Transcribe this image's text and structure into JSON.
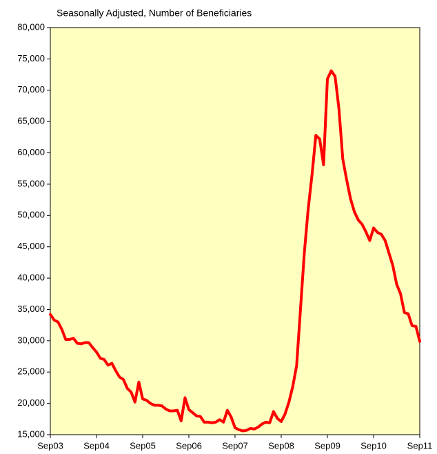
{
  "chart_data": {
    "type": "line",
    "title": "Seasonally Adjusted, Number of Beneficiaries",
    "categories": [
      "Sep03",
      null,
      null,
      null,
      null,
      null,
      null,
      null,
      null,
      null,
      null,
      null,
      "Sep04",
      null,
      null,
      null,
      null,
      null,
      null,
      null,
      null,
      null,
      null,
      null,
      "Sep05",
      null,
      null,
      null,
      null,
      null,
      null,
      null,
      null,
      null,
      null,
      null,
      "Sep06",
      null,
      null,
      null,
      null,
      null,
      null,
      null,
      null,
      null,
      null,
      null,
      "Sep07",
      null,
      null,
      null,
      null,
      null,
      null,
      null,
      null,
      null,
      null,
      null,
      "Sep08",
      null,
      null,
      null,
      null,
      null,
      null,
      null,
      null,
      null,
      null,
      null,
      "Sep09",
      null,
      null,
      null,
      null,
      null,
      null,
      null,
      null,
      null,
      null,
      null,
      "Sep10",
      null,
      null,
      null,
      null,
      null,
      null,
      null,
      null,
      null,
      null,
      null,
      "Sep11"
    ],
    "series": [
      {
        "color": "#ff0000",
        "values": [
          34200,
          33300,
          33000,
          31800,
          30200,
          30200,
          30400,
          29600,
          29500,
          29700,
          29700,
          28900,
          28200,
          27200,
          27000,
          26100,
          26400,
          25200,
          24200,
          23800,
          22400,
          21800,
          20200,
          23400,
          20700,
          20500,
          20000,
          19700,
          19700,
          19600,
          19100,
          18800,
          18800,
          18900,
          17200,
          20900,
          19000,
          18500,
          18000,
          17900,
          17000,
          17000,
          16900,
          17000,
          17400,
          17000,
          18900,
          17800,
          16100,
          15800,
          15600,
          15700,
          16000,
          15900,
          16200,
          16700,
          17000,
          16900,
          18700,
          17600,
          17100,
          18300,
          20200,
          22700,
          26000,
          35000,
          44000,
          51000,
          56500,
          62800,
          62200,
          58100,
          71800,
          73100,
          72200,
          67000,
          59000,
          55700,
          52700,
          50600,
          49300,
          48600,
          47400,
          46000,
          48000,
          47300,
          47000,
          46000,
          44000,
          42000,
          39000,
          37500,
          34500,
          34300,
          32400,
          32300,
          29900
        ]
      }
    ],
    "ylim": [
      15000,
      80000
    ],
    "yticks": [
      {
        "value": 15000,
        "label": "15,000"
      },
      {
        "value": 20000,
        "label": "20,000"
      },
      {
        "value": 25000,
        "label": "25,000"
      },
      {
        "value": 30000,
        "label": "30,000"
      },
      {
        "value": 35000,
        "label": "35,000"
      },
      {
        "value": 40000,
        "label": "40,000"
      },
      {
        "value": 45000,
        "label": "45,000"
      },
      {
        "value": 50000,
        "label": "50,000"
      },
      {
        "value": 55000,
        "label": "55,000"
      },
      {
        "value": 60000,
        "label": "60,000"
      },
      {
        "value": 65000,
        "label": "65,000"
      },
      {
        "value": 70000,
        "label": "70,000"
      },
      {
        "value": 75000,
        "label": "75,000"
      },
      {
        "value": 80000,
        "label": "80,000"
      }
    ],
    "background": "#ffffc0"
  }
}
